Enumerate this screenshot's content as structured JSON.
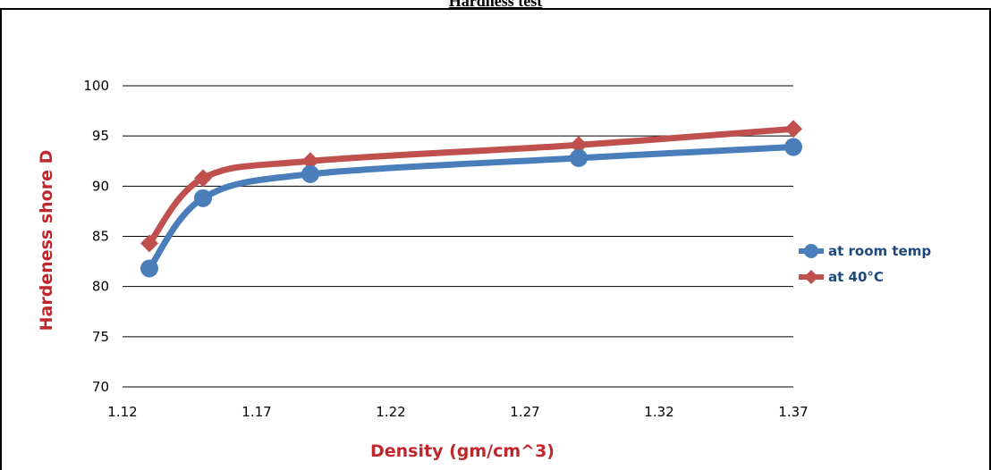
{
  "page": {
    "title": "Hardness test"
  },
  "colors": {
    "room_temp": "#4a7ebb",
    "forty_c": "#c0504d",
    "axis_title": "#c0272d",
    "legend_text": "#1f497d",
    "grid": "#000000"
  },
  "chart_data": {
    "type": "line",
    "title": "Hardness test",
    "xlabel": "Density (gm/cm^3)",
    "ylabel": "Hardeness shore D",
    "xlim": [
      1.12,
      1.37
    ],
    "ylim": [
      70,
      100
    ],
    "x_ticks": [
      "1.12",
      "1.17",
      "1.22",
      "1.27",
      "1.32",
      "1.37"
    ],
    "y_ticks": [
      "70",
      "75",
      "80",
      "85",
      "90",
      "95",
      "100"
    ],
    "grid": "horizontal",
    "legend_position": "right",
    "series": [
      {
        "name": "at room temp",
        "marker": "circle",
        "color": "#4a7ebb",
        "x": [
          1.13,
          1.15,
          1.19,
          1.29,
          1.37
        ],
        "y": [
          81.8,
          88.8,
          91.2,
          92.8,
          93.9
        ]
      },
      {
        "name": "at 40°C",
        "marker": "diamond",
        "color": "#c0504d",
        "x": [
          1.13,
          1.15,
          1.19,
          1.29,
          1.37
        ],
        "y": [
          84.3,
          90.8,
          92.5,
          94.1,
          95.7
        ]
      }
    ]
  }
}
